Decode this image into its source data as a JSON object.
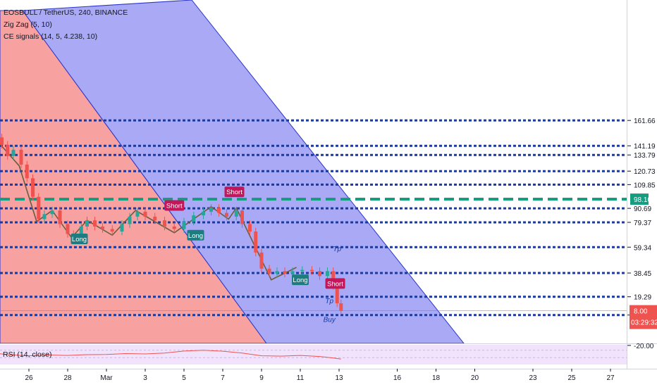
{
  "header": {
    "symbol_line": "EOSBULL / TetherUS, 240, BINANCE",
    "indicator_1": "Zig Zag (5, 10)",
    "indicator_2": "CE signals (14, 5, 4.238, 10)"
  },
  "rsi_panel": {
    "label": "RSI (14, close)"
  },
  "colors": {
    "level_line": "#1a3aa0",
    "current_level": "#169c7f",
    "red_channel": "#f7a1a1",
    "blue_channel": "#a9a9f5",
    "channel_edge": "#2a35c9",
    "candle_up": "#26a69a",
    "candle_down": "#ef5350",
    "signal_long": "#1c7c80",
    "signal_short": "#c2185b",
    "rsi_bg": "#f1e3fb"
  },
  "current_price_tag": {
    "price": "8.00",
    "countdown": "03:29:32",
    "color": "#ef5350"
  },
  "chart_data": {
    "type": "candlestick",
    "ylim": [
      -20,
      175
    ],
    "y_ticks": [
      {
        "label": "161.66",
        "value": 161.66
      },
      {
        "label": "141.19",
        "value": 141.19
      },
      {
        "label": "133.79",
        "value": 133.79
      },
      {
        "label": "120.73",
        "value": 120.73
      },
      {
        "label": "109.85",
        "value": 109.85
      },
      {
        "label": "98.10",
        "value": 98.1,
        "highlight": true
      },
      {
        "label": "90.69",
        "value": 90.69
      },
      {
        "label": "79.37",
        "value": 79.37
      },
      {
        "label": "59.34",
        "value": 59.34
      },
      {
        "label": "38.45",
        "value": 38.45
      },
      {
        "label": "19.29",
        "value": 19.29
      },
      {
        "label": "4.54",
        "value": 4.54
      },
      {
        "label": "-20.00",
        "value": -20.0
      }
    ],
    "level_lines": [
      161.66,
      141.19,
      133.79,
      120.73,
      109.85,
      90.69,
      79.37,
      59.34,
      38.45,
      19.29,
      4.54
    ],
    "current_level_line": 98.1,
    "x_ticks": [
      {
        "label": "26",
        "day": 26
      },
      {
        "label": "28",
        "day": 28
      },
      {
        "label": "Mar",
        "day": 30
      },
      {
        "label": "3",
        "day": 32
      },
      {
        "label": "5",
        "day": 34
      },
      {
        "label": "7",
        "day": 36
      },
      {
        "label": "9",
        "day": 38
      },
      {
        "label": "11",
        "day": 40
      },
      {
        "label": "13",
        "day": 42
      },
      {
        "label": "16",
        "day": 45
      },
      {
        "label": "18",
        "day": 47
      },
      {
        "label": "20",
        "day": 49
      },
      {
        "label": "23",
        "day": 52
      },
      {
        "label": "25",
        "day": 54
      },
      {
        "label": "27",
        "day": 56
      }
    ],
    "zigzag": [
      {
        "day": 24.2,
        "value": 148
      },
      {
        "day": 25.5,
        "value": 125
      },
      {
        "day": 26.4,
        "value": 80
      },
      {
        "day": 27.2,
        "value": 89
      },
      {
        "day": 28.2,
        "value": 67
      },
      {
        "day": 29.0,
        "value": 81
      },
      {
        "day": 30.3,
        "value": 69
      },
      {
        "day": 31.5,
        "value": 89
      },
      {
        "day": 33.5,
        "value": 71
      },
      {
        "day": 35.4,
        "value": 92
      },
      {
        "day": 36.3,
        "value": 82
      },
      {
        "day": 36.7,
        "value": 91
      },
      {
        "day": 38.5,
        "value": 33
      },
      {
        "day": 39.8,
        "value": 43
      }
    ],
    "closes": [
      {
        "day": 24.2,
        "value": 148
      },
      {
        "day": 24.6,
        "value": 142
      },
      {
        "day": 24.9,
        "value": 133
      },
      {
        "day": 25.2,
        "value": 138
      },
      {
        "day": 25.6,
        "value": 126
      },
      {
        "day": 25.9,
        "value": 115
      },
      {
        "day": 26.2,
        "value": 100
      },
      {
        "day": 26.5,
        "value": 82
      },
      {
        "day": 26.8,
        "value": 86
      },
      {
        "day": 27.2,
        "value": 89
      },
      {
        "day": 27.6,
        "value": 78
      },
      {
        "day": 28.0,
        "value": 70
      },
      {
        "day": 28.3,
        "value": 67
      },
      {
        "day": 28.7,
        "value": 76
      },
      {
        "day": 29.0,
        "value": 81
      },
      {
        "day": 29.4,
        "value": 76
      },
      {
        "day": 29.8,
        "value": 74
      },
      {
        "day": 30.3,
        "value": 72
      },
      {
        "day": 30.8,
        "value": 78
      },
      {
        "day": 31.2,
        "value": 84
      },
      {
        "day": 31.6,
        "value": 88
      },
      {
        "day": 32.0,
        "value": 84
      },
      {
        "day": 32.5,
        "value": 81
      },
      {
        "day": 33.0,
        "value": 76
      },
      {
        "day": 33.5,
        "value": 74
      },
      {
        "day": 34.0,
        "value": 80
      },
      {
        "day": 34.5,
        "value": 85
      },
      {
        "day": 35.0,
        "value": 88
      },
      {
        "day": 35.4,
        "value": 91
      },
      {
        "day": 35.8,
        "value": 87
      },
      {
        "day": 36.2,
        "value": 84
      },
      {
        "day": 36.7,
        "value": 89
      },
      {
        "day": 37.0,
        "value": 78
      },
      {
        "day": 37.4,
        "value": 72
      },
      {
        "day": 37.7,
        "value": 55
      },
      {
        "day": 38.0,
        "value": 42
      },
      {
        "day": 38.4,
        "value": 38
      },
      {
        "day": 38.8,
        "value": 40
      },
      {
        "day": 39.2,
        "value": 38
      },
      {
        "day": 39.6,
        "value": 40
      },
      {
        "day": 40.1,
        "value": 41
      },
      {
        "day": 40.6,
        "value": 40
      },
      {
        "day": 41.0,
        "value": 36
      },
      {
        "day": 41.4,
        "value": 40
      },
      {
        "day": 41.7,
        "value": 28
      },
      {
        "day": 41.9,
        "value": 14
      },
      {
        "day": 42.1,
        "value": 8
      }
    ],
    "signals": [
      {
        "label": "Long",
        "kind": "long",
        "day": 28.6,
        "value": 66
      },
      {
        "label": "Short",
        "kind": "short",
        "day": 33.5,
        "value": 93
      },
      {
        "label": "Long",
        "kind": "long",
        "day": 34.6,
        "value": 69
      },
      {
        "label": "Short",
        "kind": "short",
        "day": 36.6,
        "value": 104
      },
      {
        "label": "Long",
        "kind": "long",
        "day": 40.0,
        "value": 33
      },
      {
        "label": "Short",
        "kind": "short",
        "day": 41.8,
        "value": 30
      }
    ],
    "annotations": [
      {
        "text": "Tp",
        "day": 41.9,
        "value": 56
      },
      {
        "text": "Tp",
        "day": 41.5,
        "value": 14
      },
      {
        "text": "Buy",
        "day": 41.5,
        "value": -1
      }
    ],
    "rsi": {
      "ylim": [
        0,
        100
      ],
      "values": [
        {
          "day": 24.2,
          "value": 55
        },
        {
          "day": 25.0,
          "value": 45
        },
        {
          "day": 26.0,
          "value": 40
        },
        {
          "day": 27.0,
          "value": 44
        },
        {
          "day": 28.0,
          "value": 42
        },
        {
          "day": 29.0,
          "value": 46
        },
        {
          "day": 30.0,
          "value": 47
        },
        {
          "day": 31.0,
          "value": 52
        },
        {
          "day": 32.0,
          "value": 50
        },
        {
          "day": 33.0,
          "value": 55
        },
        {
          "day": 34.0,
          "value": 66
        },
        {
          "day": 35.0,
          "value": 70
        },
        {
          "day": 36.0,
          "value": 65
        },
        {
          "day": 37.0,
          "value": 55
        },
        {
          "day": 38.0,
          "value": 40
        },
        {
          "day": 39.0,
          "value": 38
        },
        {
          "day": 40.0,
          "value": 42
        },
        {
          "day": 41.0,
          "value": 36
        },
        {
          "day": 41.7,
          "value": 28
        },
        {
          "day": 42.1,
          "value": 22
        }
      ]
    }
  }
}
